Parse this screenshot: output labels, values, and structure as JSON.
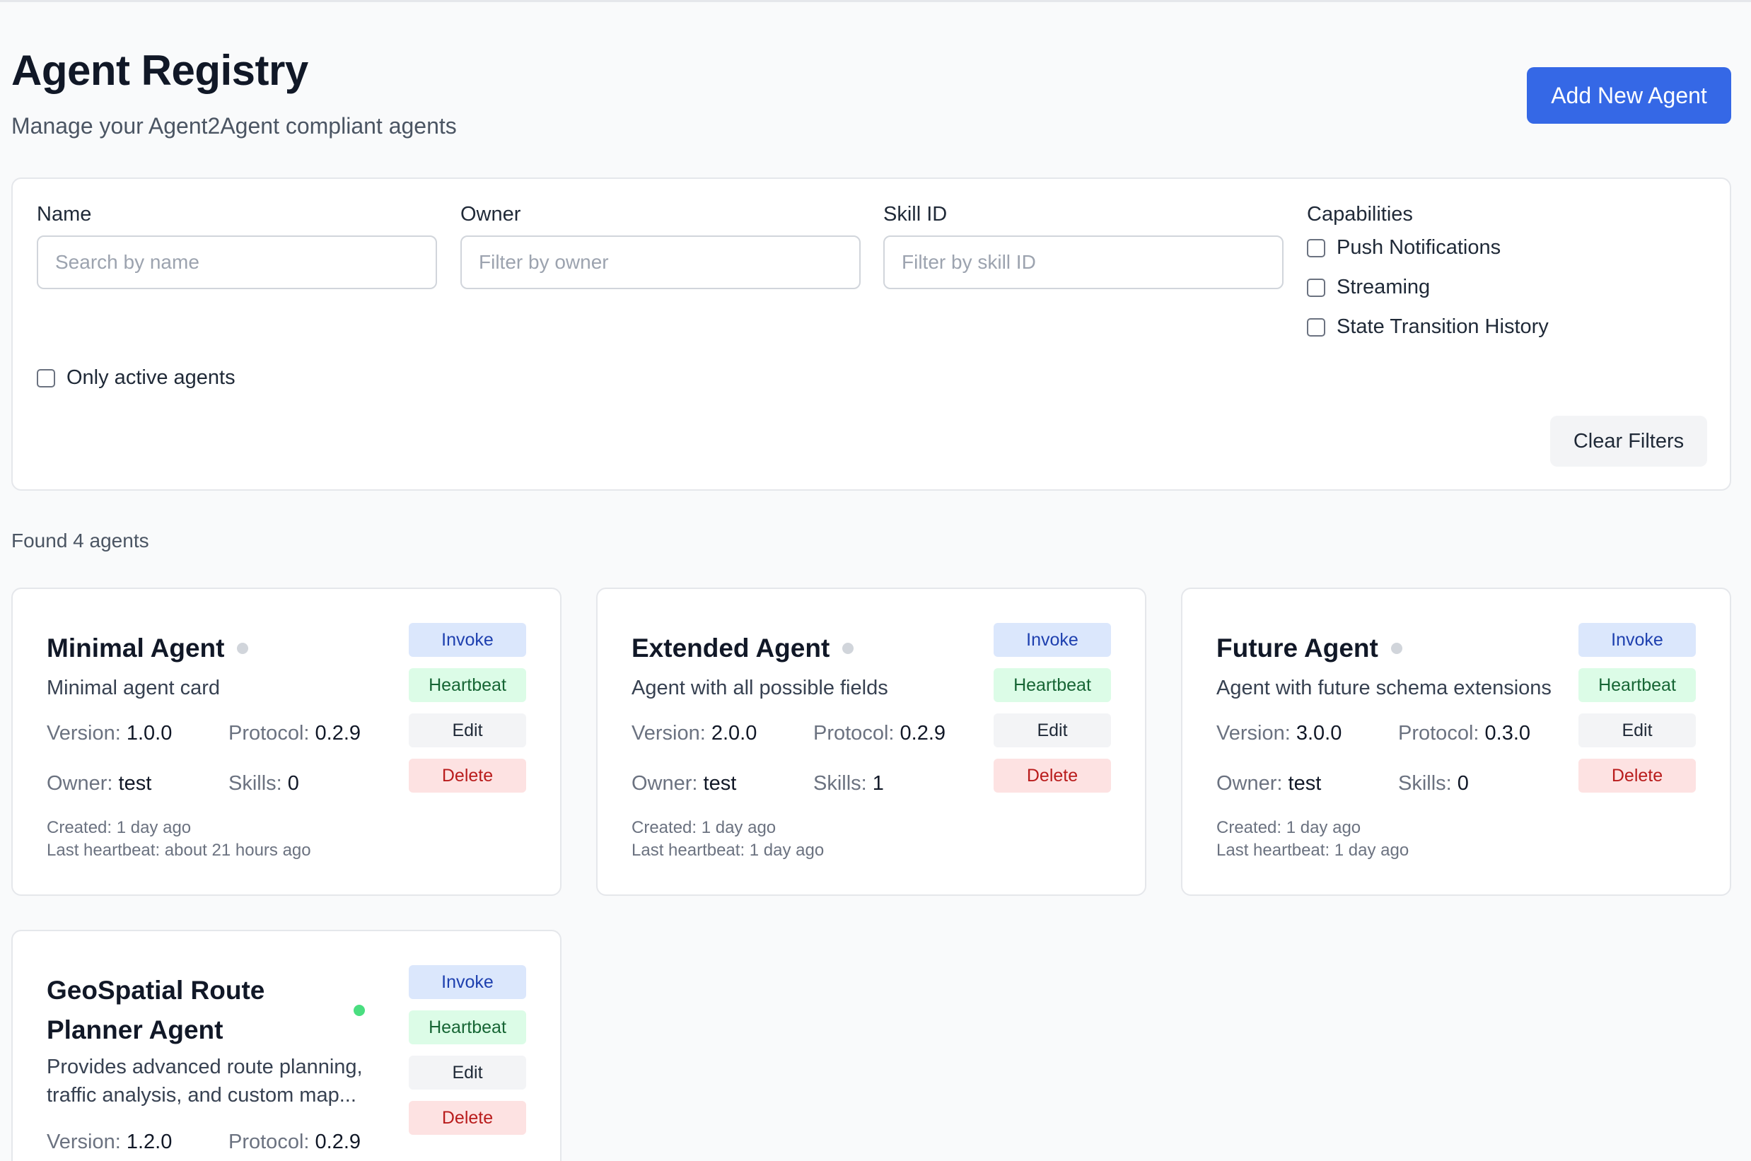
{
  "header": {
    "title": "Agent Registry",
    "subtitle": "Manage your Agent2Agent compliant agents",
    "add_button": "Add New Agent"
  },
  "filters": {
    "name_label": "Name",
    "name_placeholder": "Search by name",
    "owner_label": "Owner",
    "owner_placeholder": "Filter by owner",
    "skill_label": "Skill ID",
    "skill_placeholder": "Filter by skill ID",
    "capabilities_label": "Capabilities",
    "capabilities": [
      "Push Notifications",
      "Streaming",
      "State Transition History"
    ],
    "only_active": "Only active agents",
    "clear_button": "Clear Filters"
  },
  "found_text": "Found 4 agents",
  "labels": {
    "version": "Version:",
    "protocol": "Protocol:",
    "owner": "Owner:",
    "skills": "Skills:",
    "invoke": "Invoke",
    "heartbeat": "Heartbeat",
    "edit": "Edit",
    "delete": "Delete"
  },
  "agents": [
    {
      "name": "Minimal Agent",
      "active": false,
      "description": "Minimal agent card",
      "version": "1.0.0",
      "protocol": "0.2.9",
      "owner": "test",
      "skills": "0",
      "created": "Created: 1 day ago",
      "last_heartbeat": "Last heartbeat: about 21 hours ago"
    },
    {
      "name": "Extended Agent",
      "active": false,
      "description": "Agent with all possible fields",
      "version": "2.0.0",
      "protocol": "0.2.9",
      "owner": "test",
      "skills": "1",
      "created": "Created: 1 day ago",
      "last_heartbeat": "Last heartbeat: 1 day ago"
    },
    {
      "name": "Future Agent",
      "active": false,
      "description": "Agent with future schema extensions",
      "version": "3.0.0",
      "protocol": "0.3.0",
      "owner": "test",
      "skills": "0",
      "created": "Created: 1 day ago",
      "last_heartbeat": "Last heartbeat: 1 day ago"
    },
    {
      "name": "GeoSpatial Route Planner Agent",
      "active": true,
      "description": "Provides advanced route planning, traffic analysis, and custom map...",
      "version": "1.2.0",
      "protocol": "0.2.9"
    }
  ],
  "colors": {
    "primary": "#3568e6",
    "active_dot": "#4ade80",
    "inactive_dot": "#d1d5db"
  }
}
